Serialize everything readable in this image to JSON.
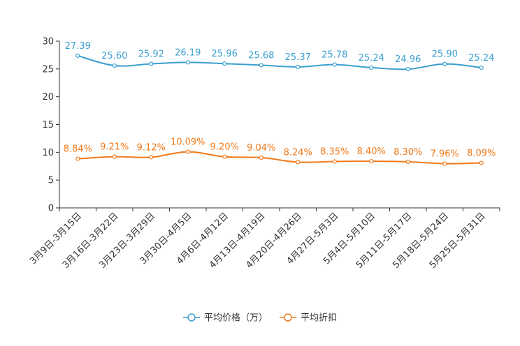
{
  "chart_data": {
    "type": "line",
    "title": "",
    "xlabel": "",
    "ylabel": "",
    "ylim": [
      0,
      30
    ],
    "yticks": [
      0,
      5,
      10,
      15,
      20,
      25,
      30
    ],
    "grid": false,
    "legend_position": "bottom-center",
    "categories": [
      "3月9日-3月15日",
      "3月16日-3月22日",
      "3月23日-3月29日",
      "3月30日-4月5日",
      "4月6日-4月12日",
      "4月13日-4月19日",
      "4月20日-4月26日",
      "4月27日-5月3日",
      "5月4日-5月10日",
      "5月11日-5月17日",
      "5月18日-5月24日",
      "5月25日-5月31日"
    ],
    "series": [
      {
        "name": "平均价格（万）",
        "color": "#3a9fd0",
        "values": [
          27.39,
          25.6,
          25.92,
          26.19,
          25.96,
          25.68,
          25.37,
          25.78,
          25.24,
          24.96,
          25.9,
          25.24
        ],
        "labels": [
          "27.39",
          "25.60",
          "25.92",
          "26.19",
          "25.96",
          "25.68",
          "25.37",
          "25.78",
          "25.24",
          "24.96",
          "25.90",
          "25.24"
        ]
      },
      {
        "name": "平均折扣",
        "color": "#f07a1a",
        "values": [
          8.84,
          9.21,
          9.12,
          10.09,
          9.2,
          9.04,
          8.24,
          8.35,
          8.4,
          8.3,
          7.96,
          8.09
        ],
        "labels": [
          "8.84%",
          "9.21%",
          "9.12%",
          "10.09%",
          "9.20%",
          "9.04%",
          "8.24%",
          "8.35%",
          "8.40%",
          "8.30%",
          "7.96%",
          "8.09%"
        ]
      }
    ]
  }
}
